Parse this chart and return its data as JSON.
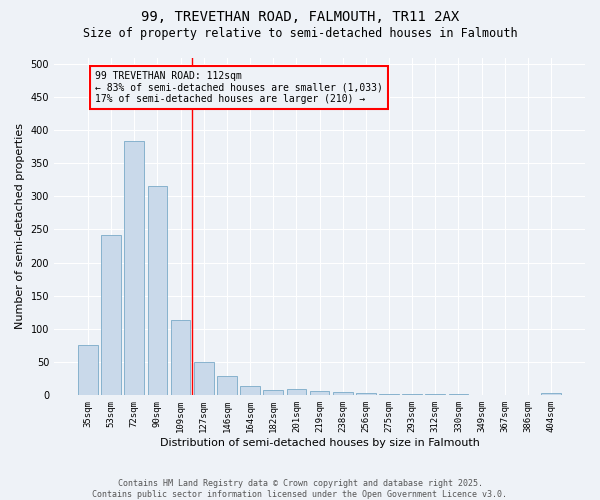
{
  "title": "99, TREVETHAN ROAD, FALMOUTH, TR11 2AX",
  "subtitle": "Size of property relative to semi-detached houses in Falmouth",
  "xlabel": "Distribution of semi-detached houses by size in Falmouth",
  "ylabel": "Number of semi-detached properties",
  "bar_labels": [
    "35sqm",
    "53sqm",
    "72sqm",
    "90sqm",
    "109sqm",
    "127sqm",
    "146sqm",
    "164sqm",
    "182sqm",
    "201sqm",
    "219sqm",
    "238sqm",
    "256sqm",
    "275sqm",
    "293sqm",
    "312sqm",
    "330sqm",
    "349sqm",
    "367sqm",
    "386sqm",
    "404sqm"
  ],
  "bar_values": [
    75,
    242,
    384,
    315,
    113,
    50,
    28,
    14,
    8,
    9,
    6,
    5,
    3,
    2,
    1,
    1,
    1,
    0,
    0,
    0,
    3
  ],
  "bar_color": "#c9d9ea",
  "bar_edge_color": "#7aaac8",
  "vline_x": 4.5,
  "vline_color": "red",
  "annotation_text": "99 TREVETHAN ROAD: 112sqm\n← 83% of semi-detached houses are smaller (1,033)\n17% of semi-detached houses are larger (210) →",
  "ylim": [
    0,
    510
  ],
  "yticks": [
    0,
    50,
    100,
    150,
    200,
    250,
    300,
    350,
    400,
    450,
    500
  ],
  "footnote1": "Contains HM Land Registry data © Crown copyright and database right 2025.",
  "footnote2": "Contains public sector information licensed under the Open Government Licence v3.0.",
  "background_color": "#eef2f7",
  "title_fontsize": 10,
  "subtitle_fontsize": 8.5,
  "tick_fontsize": 6.5,
  "ylabel_fontsize": 8,
  "xlabel_fontsize": 8,
  "annotation_fontsize": 7,
  "footnote_fontsize": 6
}
